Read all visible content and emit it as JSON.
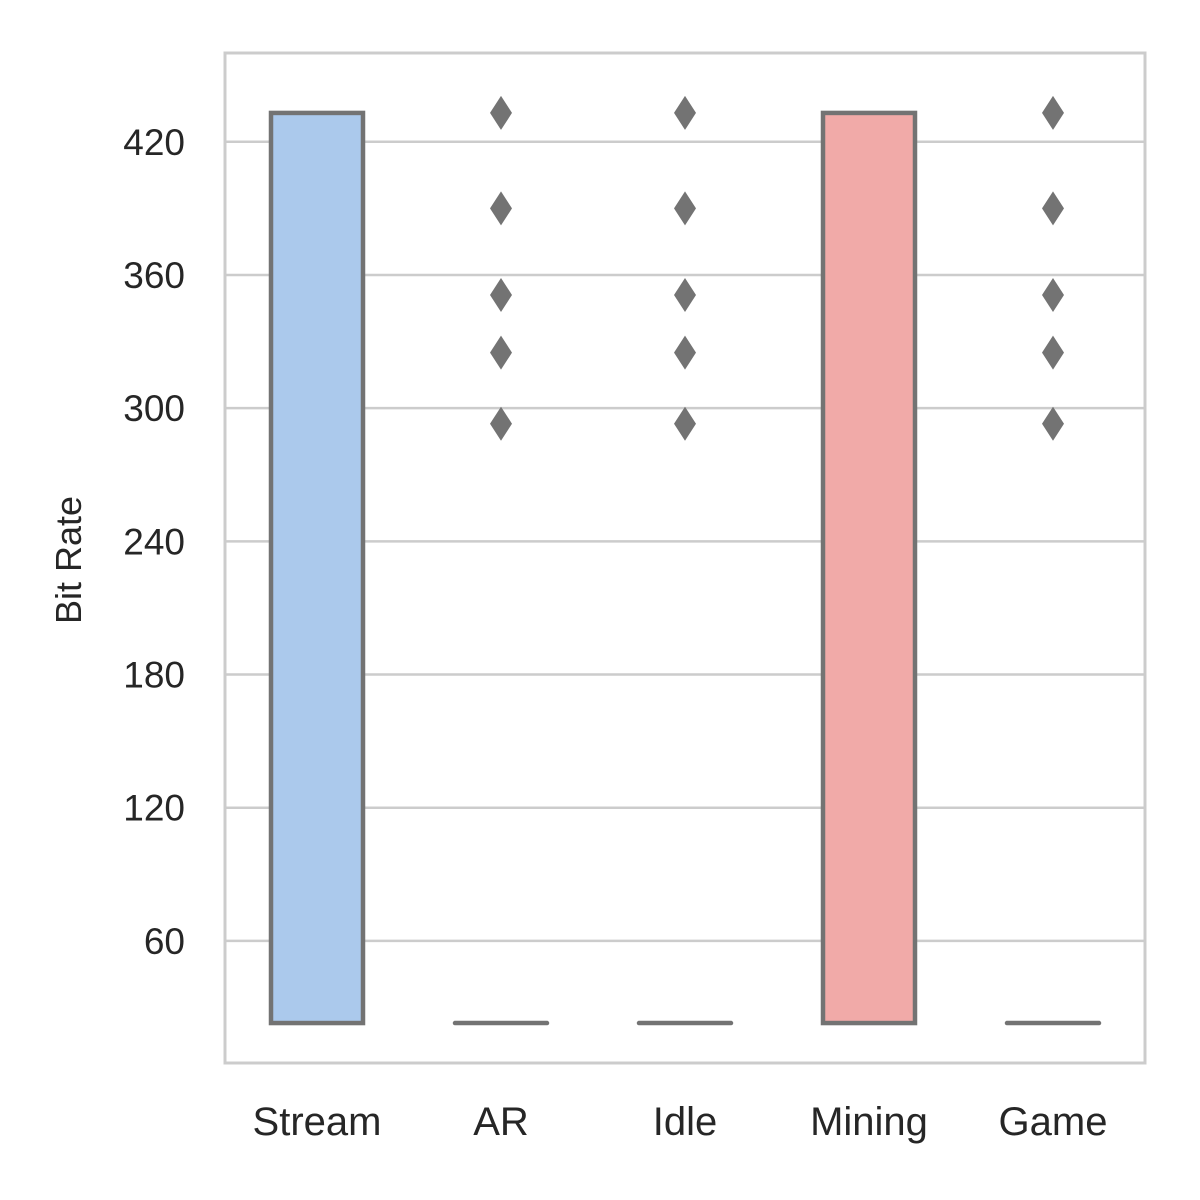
{
  "chart_data": {
    "type": "box",
    "title": "",
    "xlabel": "",
    "ylabel": "Bit Rate",
    "categories": [
      "Stream",
      "AR",
      "Idle",
      "Mining",
      "Game"
    ],
    "ylim": [
      5,
      460
    ],
    "yticks": [
      60,
      120,
      180,
      240,
      300,
      360,
      420
    ],
    "grid": "horizontal",
    "colors": {
      "box_stroke": "#737373",
      "grid": "#cccccc",
      "frame": "#cccccc",
      "Stream": "#abc9ec",
      "Mining": "#f1aaa8",
      "flier": "#737373"
    },
    "boxes": [
      {
        "category": "Stream",
        "min": 23,
        "q1": 23,
        "median": 23,
        "q3": 433,
        "max": 433,
        "fliers": []
      },
      {
        "category": "AR",
        "min": 23,
        "q1": 23,
        "median": 23,
        "q3": 23,
        "max": 23,
        "fliers": [
          433,
          390,
          351,
          325,
          293
        ]
      },
      {
        "category": "Idle",
        "min": 23,
        "q1": 23,
        "median": 23,
        "q3": 23,
        "max": 23,
        "fliers": [
          433,
          390,
          351,
          325,
          293
        ]
      },
      {
        "category": "Mining",
        "min": 23,
        "q1": 23,
        "median": 23,
        "q3": 433,
        "max": 433,
        "fliers": []
      },
      {
        "category": "Game",
        "min": 23,
        "q1": 23,
        "median": 23,
        "q3": 23,
        "max": 23,
        "fliers": [
          433,
          390,
          351,
          325,
          293
        ]
      }
    ]
  }
}
